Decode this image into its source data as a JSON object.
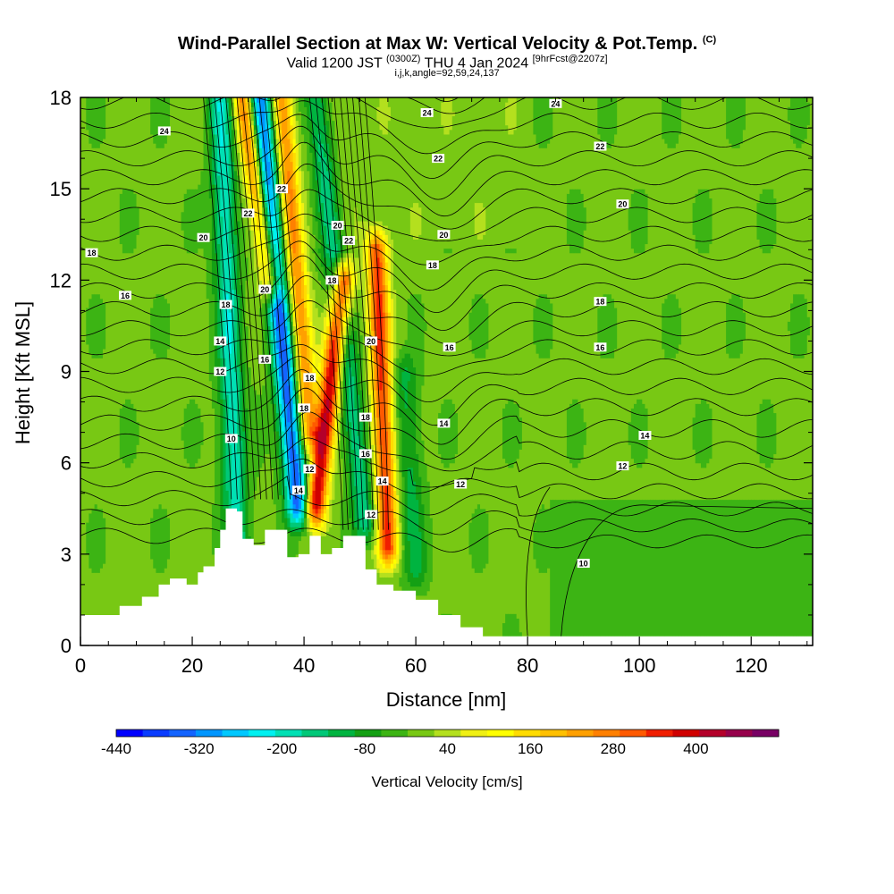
{
  "header": {
    "title": "Wind-Parallel Section at Max W: Vertical Velocity & Pot.Temp.",
    "title_mark": "(C)",
    "valid_prefix": "Valid 1200 JST",
    "valid_utc": "(0300Z)",
    "valid_date": "THU 4 Jan 2024",
    "forecast_tag": "[9hrFcst@2207z]",
    "grid_info": "i,j,k,angle=92,59,24,137"
  },
  "chart_data": {
    "type": "heatmap",
    "xlabel": "Distance [nm]",
    "ylabel": "Height [Kft MSL]",
    "xlim": [
      0,
      131
    ],
    "ylim": [
      0,
      18
    ],
    "x_ticks": [
      0,
      20,
      40,
      60,
      80,
      100,
      120
    ],
    "y_ticks": [
      0,
      3,
      6,
      9,
      12,
      15,
      18
    ],
    "colorbar": {
      "label": "Vertical Velocity [cm/s]",
      "tick_labels": [
        "-440",
        "-320",
        "-200",
        "-80",
        "40",
        "160",
        "280",
        "400"
      ],
      "tick_values": [
        -440,
        -320,
        -200,
        -80,
        40,
        160,
        280,
        400
      ],
      "range": [
        -440,
        520
      ],
      "step": 40,
      "colors": [
        "#0000ff",
        "#0a3cff",
        "#1464ff",
        "#0096ff",
        "#00c8ff",
        "#00f0f0",
        "#00e0b4",
        "#00c878",
        "#00b440",
        "#14a014",
        "#3cb414",
        "#78c814",
        "#b4e01e",
        "#f0f014",
        "#ffff00",
        "#ffdc00",
        "#ffc000",
        "#ffa000",
        "#ff8000",
        "#ff5a00",
        "#f01e00",
        "#d00000",
        "#b4002a",
        "#96004b",
        "#780064"
      ]
    },
    "terrain_kft": [
      [
        0,
        1.0
      ],
      [
        7,
        1.3
      ],
      [
        11,
        1.6
      ],
      [
        14,
        2.0
      ],
      [
        16,
        2.2
      ],
      [
        19,
        2.0
      ],
      [
        21,
        2.4
      ],
      [
        22,
        2.6
      ],
      [
        24,
        3.2
      ],
      [
        25,
        3.8
      ],
      [
        26,
        4.5
      ],
      [
        28,
        4.4
      ],
      [
        29,
        3.5
      ],
      [
        31,
        3.3
      ],
      [
        33,
        3.8
      ],
      [
        35,
        3.8
      ],
      [
        37,
        2.9
      ],
      [
        39,
        3.0
      ],
      [
        41,
        3.6
      ],
      [
        43,
        3.0
      ],
      [
        45,
        3.2
      ],
      [
        47,
        3.6
      ],
      [
        49,
        3.6
      ],
      [
        51,
        2.5
      ],
      [
        53,
        2.0
      ],
      [
        56,
        1.8
      ],
      [
        60,
        1.5
      ],
      [
        64,
        1.0
      ],
      [
        68,
        0.6
      ],
      [
        72,
        0.3
      ],
      [
        131,
        0.3
      ]
    ],
    "updrafts_cm_s": [
      {
        "x_top": 29,
        "x_bottom": 34,
        "z_top": 18,
        "z_bottom": 12,
        "w_max": 320
      },
      {
        "x_top": 36,
        "x_bottom": 41,
        "z_top": 18,
        "z_bottom": 7,
        "w_max": 280
      },
      {
        "x_top": 47,
        "x_bottom": 42,
        "z_top": 12,
        "z_bottom": 4.5,
        "w_max": 440
      },
      {
        "x_top": 53,
        "x_bottom": 55,
        "z_top": 13,
        "z_bottom": 3.2,
        "w_max": 360
      }
    ],
    "downdrafts_cm_s": [
      {
        "x_top": 32,
        "x_bottom": 39,
        "z_top": 18,
        "z_bottom": 4.5,
        "w_min": -360
      },
      {
        "x_top": 25,
        "x_bottom": 28,
        "z_top": 18,
        "z_bottom": 3.5,
        "w_min": -200
      },
      {
        "x_top": 42,
        "x_bottom": 51,
        "z_top": 18,
        "z_bottom": 4,
        "w_min": -160
      },
      {
        "x_top": 58,
        "x_bottom": 60,
        "z_top": 9,
        "z_bottom": 2.5,
        "w_min": -100
      }
    ],
    "theta_contours": {
      "label_levels": [
        "10",
        "12",
        "14",
        "16",
        "18",
        "20",
        "22",
        "24"
      ],
      "labels": [
        {
          "text": "24",
          "x": 15,
          "z": 16.9
        },
        {
          "text": "24",
          "x": 62,
          "z": 17.5
        },
        {
          "text": "24",
          "x": 85,
          "z": 17.8
        },
        {
          "text": "22",
          "x": 64,
          "z": 16.0
        },
        {
          "text": "22",
          "x": 93,
          "z": 16.4
        },
        {
          "text": "22",
          "x": 30,
          "z": 14.2
        },
        {
          "text": "22",
          "x": 36,
          "z": 15.0
        },
        {
          "text": "22",
          "x": 48,
          "z": 13.3
        },
        {
          "text": "20",
          "x": 22,
          "z": 13.4
        },
        {
          "text": "20",
          "x": 97,
          "z": 14.5
        },
        {
          "text": "20",
          "x": 65,
          "z": 13.5
        },
        {
          "text": "20",
          "x": 46,
          "z": 13.8
        },
        {
          "text": "20",
          "x": 33,
          "z": 11.7
        },
        {
          "text": "20",
          "x": 52,
          "z": 10.0
        },
        {
          "text": "18",
          "x": 2,
          "z": 12.9
        },
        {
          "text": "18",
          "x": 63,
          "z": 12.5
        },
        {
          "text": "18",
          "x": 93,
          "z": 11.3
        },
        {
          "text": "18",
          "x": 26,
          "z": 11.2
        },
        {
          "text": "18",
          "x": 45,
          "z": 12.0
        },
        {
          "text": "18",
          "x": 41,
          "z": 8.8
        },
        {
          "text": "18",
          "x": 40,
          "z": 7.8
        },
        {
          "text": "18",
          "x": 51,
          "z": 7.5
        },
        {
          "text": "16",
          "x": 8,
          "z": 11.5
        },
        {
          "text": "16",
          "x": 66,
          "z": 9.8
        },
        {
          "text": "16",
          "x": 93,
          "z": 9.8
        },
        {
          "text": "16",
          "x": 33,
          "z": 9.4
        },
        {
          "text": "16",
          "x": 51,
          "z": 6.3
        },
        {
          "text": "14",
          "x": 25,
          "z": 10.0
        },
        {
          "text": "14",
          "x": 65,
          "z": 7.3
        },
        {
          "text": "14",
          "x": 101,
          "z": 6.9
        },
        {
          "text": "14",
          "x": 39,
          "z": 5.1
        },
        {
          "text": "14",
          "x": 54,
          "z": 5.4
        },
        {
          "text": "12",
          "x": 25,
          "z": 9.0
        },
        {
          "text": "12",
          "x": 68,
          "z": 5.3
        },
        {
          "text": "12",
          "x": 97,
          "z": 5.9
        },
        {
          "text": "12",
          "x": 41,
          "z": 5.8
        },
        {
          "text": "12",
          "x": 52,
          "z": 4.3
        },
        {
          "text": "10",
          "x": 27,
          "z": 6.8
        },
        {
          "text": "10",
          "x": 90,
          "z": 2.7
        }
      ]
    }
  }
}
